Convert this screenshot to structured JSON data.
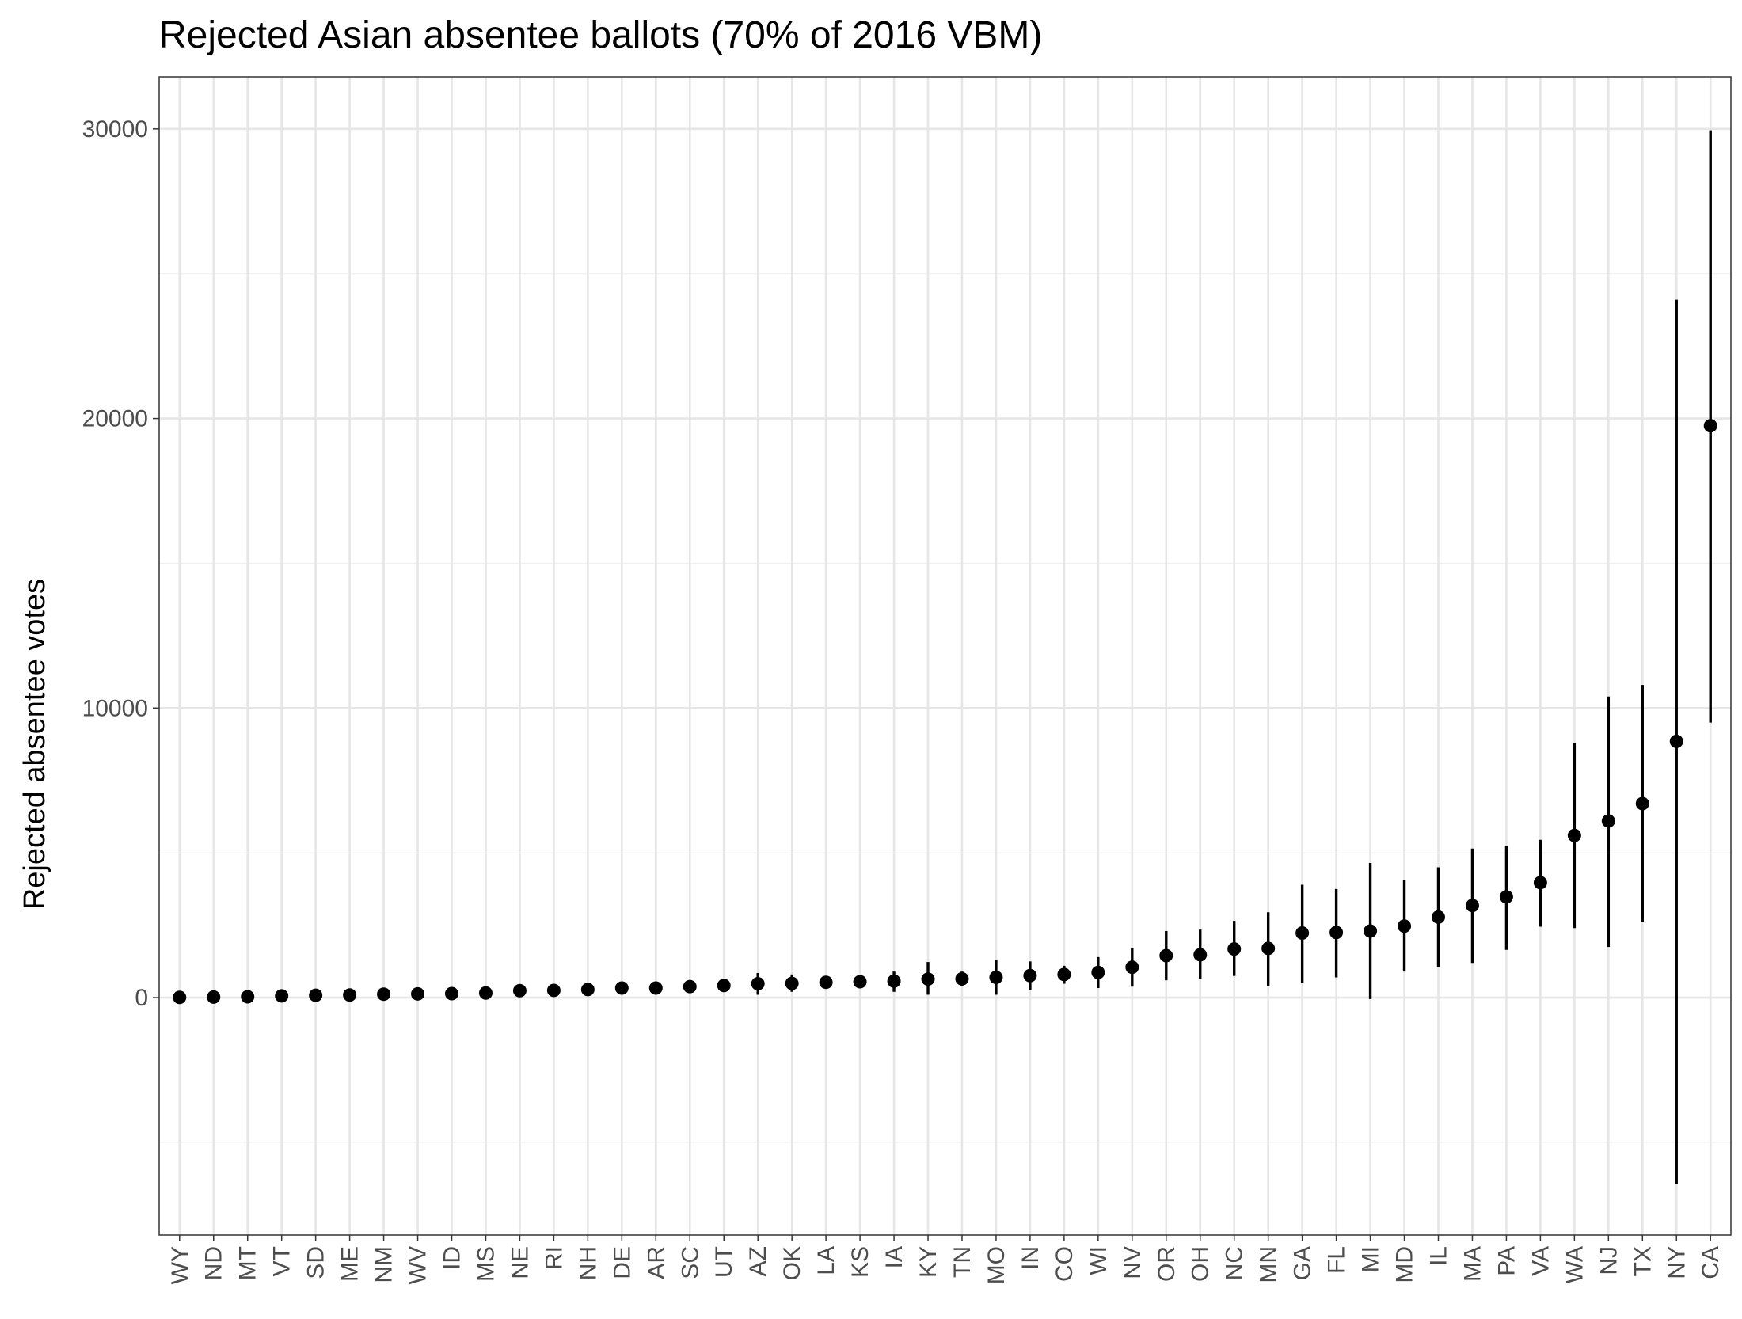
{
  "chart_data": {
    "type": "scatter",
    "title": "Rejected Asian absentee ballots (70% of 2016 VBM)",
    "xlabel": "",
    "ylabel": "Rejected absentee votes",
    "ylim": [
      -8200,
      31800
    ],
    "y_ticks": [
      0,
      10000,
      20000,
      30000
    ],
    "y_tick_labels": [
      "0",
      "10000",
      "20000",
      "30000"
    ],
    "grid": true,
    "theme": "bw",
    "point_color": "#000000",
    "categories": [
      "WY",
      "ND",
      "MT",
      "VT",
      "SD",
      "ME",
      "NM",
      "WV",
      "ID",
      "MS",
      "NE",
      "RI",
      "NH",
      "DE",
      "AR",
      "SC",
      "UT",
      "AZ",
      "OK",
      "LA",
      "KS",
      "IA",
      "KY",
      "TN",
      "MO",
      "IN",
      "CO",
      "WI",
      "NV",
      "OR",
      "OH",
      "NC",
      "MN",
      "GA",
      "FL",
      "MI",
      "MD",
      "IL",
      "MA",
      "PA",
      "VA",
      "WA",
      "NJ",
      "TX",
      "NY",
      "CA"
    ],
    "values": [
      10,
      20,
      30,
      60,
      80,
      90,
      120,
      130,
      140,
      160,
      240,
      250,
      280,
      330,
      330,
      380,
      420,
      480,
      490,
      530,
      550,
      570,
      640,
      650,
      700,
      760,
      800,
      870,
      1050,
      1450,
      1480,
      1680,
      1700,
      2230,
      2250,
      2300,
      2470,
      2780,
      3180,
      3480,
      3970,
      5600,
      6100,
      6700,
      8850,
      19750
    ],
    "lower": [
      10,
      20,
      30,
      60,
      80,
      90,
      120,
      130,
      140,
      160,
      240,
      250,
      280,
      330,
      330,
      380,
      420,
      100,
      200,
      530,
      550,
      200,
      100,
      400,
      100,
      270,
      480,
      330,
      380,
      600,
      650,
      750,
      400,
      500,
      700,
      -50,
      900,
      1050,
      1200,
      1650,
      2450,
      2400,
      1750,
      2600,
      -6450,
      9500
    ],
    "upper": [
      10,
      20,
      30,
      60,
      80,
      90,
      120,
      130,
      140,
      160,
      240,
      250,
      280,
      330,
      330,
      380,
      420,
      850,
      800,
      530,
      550,
      900,
      1230,
      900,
      1300,
      1250,
      1100,
      1400,
      1700,
      2300,
      2350,
      2650,
      2950,
      3900,
      3750,
      4650,
      4050,
      4500,
      5150,
      5250,
      5450,
      8800,
      10400,
      10800,
      24100,
      29950
    ]
  }
}
